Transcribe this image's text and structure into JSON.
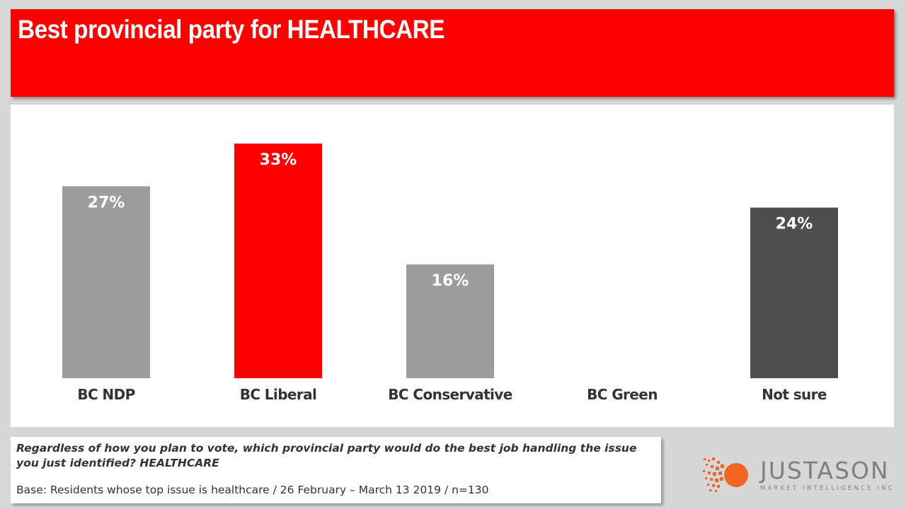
{
  "title": "Best provincial party for HEALTHCARE",
  "chart_data": {
    "type": "bar",
    "categories": [
      "BC NDP",
      "BC Liberal",
      "BC Conservative",
      "BC Green",
      "Not sure"
    ],
    "values": [
      27,
      33,
      16,
      0,
      24
    ],
    "value_labels": [
      "27%",
      "33%",
      "16%",
      "",
      "24%"
    ],
    "colors": [
      "#9d9d9d",
      "#ff0000",
      "#9d9d9d",
      "#9d9d9d",
      "#4e4e4e"
    ],
    "title": "Best provincial party for HEALTHCARE",
    "xlabel": "",
    "ylabel": "",
    "ylim": [
      0,
      35
    ],
    "grid": false,
    "legend": "none"
  },
  "footnote": {
    "question": "Regardless of how you plan to vote, which provincial party would do the best job handling the issue you just identified? HEALTHCARE",
    "base": "Base: Residents whose top issue is healthcare / 26 February – March 13 2019 / n=130"
  },
  "logo": {
    "name": "JUSTASON",
    "tagline": "MARKET INTELLIGENCE INC",
    "accent_color": "#f26522",
    "text_color": "#7f7f7f"
  }
}
